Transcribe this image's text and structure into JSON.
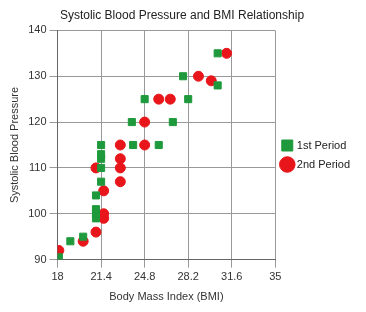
{
  "chart_data": {
    "type": "scatter",
    "title": "Systolic Blood Pressure and BMI Relationship",
    "x_label": "Body Mass Index (BMI)",
    "y_label": "Systolic Blood Pressure",
    "xlim": [
      18,
      35
    ],
    "xticks": [
      18,
      21.4,
      24.8,
      28.2,
      31.6,
      35
    ],
    "ylim": [
      90,
      140
    ],
    "yticks": [
      90,
      100,
      110,
      120,
      130,
      140
    ],
    "grid": true,
    "legend": "right",
    "series": [
      {
        "name": "1st Period",
        "color": "#1e9a3c",
        "marker": "square",
        "x": [
          18.1,
          19.0,
          20.0,
          21.0,
          21.0,
          21.0,
          21.0,
          21.4,
          21.4,
          21.4,
          21.4,
          21.4,
          23.8,
          23.9,
          24.8,
          25.9,
          27.0,
          27.8,
          28.2,
          30.5,
          30.5
        ],
        "values": [
          90.5,
          94,
          95,
          99,
          100,
          101,
          104,
          107,
          110,
          112,
          113,
          115,
          120,
          115,
          125,
          115,
          120,
          130,
          125,
          135,
          128
        ]
      },
      {
        "name": "2nd Period",
        "color": "#e8161b",
        "marker": "circle",
        "x": [
          18.1,
          20.0,
          21.0,
          21.0,
          21.6,
          21.6,
          21.6,
          22.9,
          22.9,
          22.9,
          22.9,
          24.8,
          24.8,
          25.9,
          26.8,
          29.0,
          30.0,
          31.2
        ],
        "values": [
          92,
          94,
          96,
          110,
          105,
          99,
          100,
          115,
          112,
          110,
          107,
          120,
          115,
          125,
          125,
          130,
          129,
          135
        ]
      }
    ]
  }
}
